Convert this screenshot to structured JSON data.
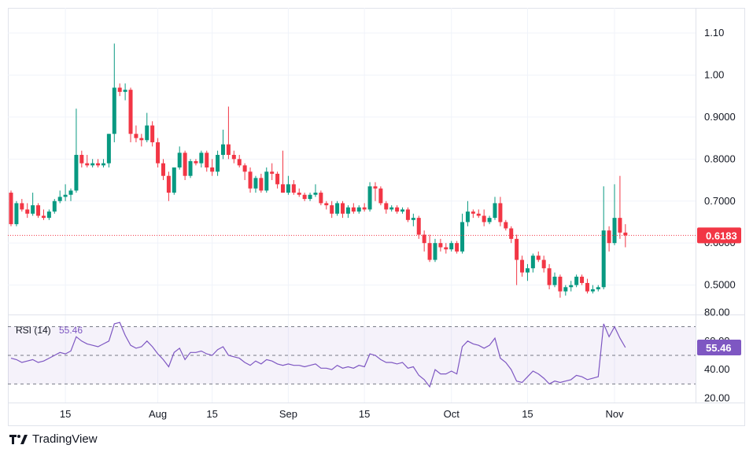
{
  "chart_data": {
    "type": "candlestick",
    "price_axis": {
      "ylim": [
        0.43,
        1.16
      ],
      "ticks": [
        {
          "value": 1.1,
          "label": "1.10"
        },
        {
          "value": 1.0,
          "label": "1.00"
        },
        {
          "value": 0.9,
          "label": "0.9000"
        },
        {
          "value": 0.8,
          "label": "0.8000"
        },
        {
          "value": 0.7,
          "label": "0.7000"
        },
        {
          "value": 0.6,
          "label": "0.6000"
        },
        {
          "value": 0.5,
          "label": "0.5000"
        }
      ]
    },
    "current_price": {
      "value": 0.6183,
      "label": "0.6183"
    },
    "x_axis": {
      "ticks": [
        {
          "index": 10,
          "label": "15"
        },
        {
          "index": 27,
          "label": "Aug"
        },
        {
          "index": 37,
          "label": "15"
        },
        {
          "index": 51,
          "label": "Sep"
        },
        {
          "index": 65,
          "label": "15"
        },
        {
          "index": 81,
          "label": "Oct"
        },
        {
          "index": 95,
          "label": "15"
        },
        {
          "index": 111,
          "label": "Nov"
        }
      ]
    },
    "candles": [
      [
        0.72,
        0.725,
        0.64,
        0.645
      ],
      [
        0.645,
        0.7,
        0.64,
        0.695
      ],
      [
        0.695,
        0.705,
        0.675,
        0.68
      ],
      [
        0.68,
        0.695,
        0.66,
        0.67
      ],
      [
        0.67,
        0.72,
        0.665,
        0.69
      ],
      [
        0.69,
        0.695,
        0.66,
        0.665
      ],
      [
        0.665,
        0.68,
        0.655,
        0.66
      ],
      [
        0.66,
        0.68,
        0.655,
        0.675
      ],
      [
        0.675,
        0.705,
        0.67,
        0.7
      ],
      [
        0.7,
        0.725,
        0.695,
        0.71
      ],
      [
        0.71,
        0.74,
        0.7,
        0.715
      ],
      [
        0.715,
        0.73,
        0.7,
        0.725
      ],
      [
        0.725,
        0.92,
        0.72,
        0.81
      ],
      [
        0.81,
        0.82,
        0.78,
        0.79
      ],
      [
        0.79,
        0.81,
        0.78,
        0.785
      ],
      [
        0.785,
        0.8,
        0.78,
        0.79
      ],
      [
        0.79,
        0.8,
        0.78,
        0.785
      ],
      [
        0.785,
        0.8,
        0.78,
        0.79
      ],
      [
        0.79,
        0.86,
        0.78,
        0.86
      ],
      [
        0.86,
        1.075,
        0.84,
        0.97
      ],
      [
        0.97,
        0.98,
        0.95,
        0.96
      ],
      [
        0.96,
        0.98,
        0.94,
        0.965
      ],
      [
        0.965,
        0.97,
        0.84,
        0.86
      ],
      [
        0.86,
        0.88,
        0.84,
        0.85
      ],
      [
        0.85,
        0.86,
        0.83,
        0.845
      ],
      [
        0.845,
        0.91,
        0.84,
        0.88
      ],
      [
        0.88,
        0.89,
        0.83,
        0.84
      ],
      [
        0.84,
        0.85,
        0.78,
        0.79
      ],
      [
        0.79,
        0.8,
        0.75,
        0.76
      ],
      [
        0.76,
        0.77,
        0.7,
        0.72
      ],
      [
        0.72,
        0.78,
        0.715,
        0.78
      ],
      [
        0.78,
        0.83,
        0.775,
        0.815
      ],
      [
        0.815,
        0.82,
        0.75,
        0.76
      ],
      [
        0.76,
        0.8,
        0.755,
        0.795
      ],
      [
        0.795,
        0.8,
        0.785,
        0.79
      ],
      [
        0.79,
        0.82,
        0.78,
        0.815
      ],
      [
        0.815,
        0.82,
        0.77,
        0.78
      ],
      [
        0.78,
        0.8,
        0.76,
        0.77
      ],
      [
        0.77,
        0.82,
        0.76,
        0.81
      ],
      [
        0.81,
        0.87,
        0.8,
        0.835
      ],
      [
        0.835,
        0.925,
        0.8,
        0.81
      ],
      [
        0.81,
        0.82,
        0.79,
        0.8
      ],
      [
        0.8,
        0.81,
        0.78,
        0.785
      ],
      [
        0.785,
        0.79,
        0.75,
        0.77
      ],
      [
        0.77,
        0.78,
        0.72,
        0.73
      ],
      [
        0.73,
        0.76,
        0.72,
        0.755
      ],
      [
        0.755,
        0.765,
        0.72,
        0.725
      ],
      [
        0.725,
        0.78,
        0.72,
        0.77
      ],
      [
        0.77,
        0.79,
        0.75,
        0.765
      ],
      [
        0.765,
        0.77,
        0.73,
        0.74
      ],
      [
        0.74,
        0.82,
        0.72,
        0.72
      ],
      [
        0.72,
        0.76,
        0.715,
        0.74
      ],
      [
        0.74,
        0.75,
        0.715,
        0.72
      ],
      [
        0.72,
        0.73,
        0.71,
        0.715
      ],
      [
        0.715,
        0.72,
        0.7,
        0.705
      ],
      [
        0.705,
        0.72,
        0.7,
        0.715
      ],
      [
        0.715,
        0.74,
        0.71,
        0.72
      ],
      [
        0.72,
        0.725,
        0.69,
        0.695
      ],
      [
        0.695,
        0.7,
        0.68,
        0.69
      ],
      [
        0.69,
        0.7,
        0.66,
        0.67
      ],
      [
        0.67,
        0.7,
        0.665,
        0.695
      ],
      [
        0.695,
        0.7,
        0.66,
        0.67
      ],
      [
        0.67,
        0.69,
        0.66,
        0.685
      ],
      [
        0.685,
        0.695,
        0.67,
        0.675
      ],
      [
        0.675,
        0.69,
        0.67,
        0.685
      ],
      [
        0.685,
        0.695,
        0.675,
        0.68
      ],
      [
        0.68,
        0.745,
        0.675,
        0.735
      ],
      [
        0.735,
        0.745,
        0.7,
        0.73
      ],
      [
        0.73,
        0.735,
        0.69,
        0.695
      ],
      [
        0.695,
        0.7,
        0.67,
        0.68
      ],
      [
        0.68,
        0.69,
        0.675,
        0.685
      ],
      [
        0.685,
        0.69,
        0.67,
        0.675
      ],
      [
        0.675,
        0.685,
        0.67,
        0.68
      ],
      [
        0.68,
        0.685,
        0.65,
        0.655
      ],
      [
        0.655,
        0.67,
        0.64,
        0.66
      ],
      [
        0.66,
        0.665,
        0.61,
        0.62
      ],
      [
        0.62,
        0.63,
        0.58,
        0.6
      ],
      [
        0.6,
        0.62,
        0.555,
        0.56
      ],
      [
        0.56,
        0.61,
        0.555,
        0.6
      ],
      [
        0.6,
        0.61,
        0.58,
        0.59
      ],
      [
        0.59,
        0.6,
        0.575,
        0.585
      ],
      [
        0.585,
        0.605,
        0.58,
        0.6
      ],
      [
        0.6,
        0.605,
        0.575,
        0.58
      ],
      [
        0.58,
        0.67,
        0.575,
        0.65
      ],
      [
        0.65,
        0.7,
        0.64,
        0.675
      ],
      [
        0.675,
        0.68,
        0.66,
        0.67
      ],
      [
        0.67,
        0.68,
        0.66,
        0.665
      ],
      [
        0.665,
        0.68,
        0.64,
        0.65
      ],
      [
        0.65,
        0.665,
        0.645,
        0.66
      ],
      [
        0.66,
        0.71,
        0.655,
        0.695
      ],
      [
        0.695,
        0.71,
        0.64,
        0.65
      ],
      [
        0.65,
        0.655,
        0.63,
        0.635
      ],
      [
        0.635,
        0.64,
        0.6,
        0.61
      ],
      [
        0.61,
        0.62,
        0.5,
        0.56
      ],
      [
        0.56,
        0.57,
        0.52,
        0.53
      ],
      [
        0.53,
        0.55,
        0.51,
        0.54
      ],
      [
        0.54,
        0.575,
        0.53,
        0.57
      ],
      [
        0.57,
        0.58,
        0.555,
        0.56
      ],
      [
        0.56,
        0.57,
        0.53,
        0.54
      ],
      [
        0.54,
        0.55,
        0.49,
        0.5
      ],
      [
        0.5,
        0.53,
        0.495,
        0.52
      ],
      [
        0.52,
        0.525,
        0.47,
        0.485
      ],
      [
        0.485,
        0.5,
        0.475,
        0.495
      ],
      [
        0.495,
        0.51,
        0.485,
        0.5
      ],
      [
        0.5,
        0.525,
        0.495,
        0.52
      ],
      [
        0.52,
        0.525,
        0.5,
        0.505
      ],
      [
        0.505,
        0.515,
        0.48,
        0.485
      ],
      [
        0.485,
        0.5,
        0.48,
        0.49
      ],
      [
        0.49,
        0.5,
        0.485,
        0.495
      ],
      [
        0.495,
        0.735,
        0.49,
        0.63
      ],
      [
        0.63,
        0.64,
        0.58,
        0.6
      ],
      [
        0.6,
        0.74,
        0.595,
        0.66
      ],
      [
        0.66,
        0.76,
        0.61,
        0.625
      ],
      [
        0.625,
        0.645,
        0.59,
        0.6183
      ]
    ],
    "rsi": {
      "label": "RSI (14)",
      "value_label": "55.46",
      "value": 55.46,
      "ylim": [
        17,
        78
      ],
      "bands": [
        30,
        50,
        70
      ],
      "ticks": [
        {
          "value": 80,
          "label": "80.00"
        },
        {
          "value": 60,
          "label": "60.00"
        },
        {
          "value": 40,
          "label": "40.00"
        },
        {
          "value": 20,
          "label": "20.00"
        }
      ],
      "values": [
        48,
        47,
        45,
        46,
        47,
        45,
        46,
        48,
        50,
        52,
        51,
        53,
        63,
        60,
        58,
        57,
        56,
        58,
        60,
        72,
        73,
        64,
        57,
        55,
        56,
        60,
        56,
        51,
        47,
        42,
        52,
        55,
        47,
        52,
        52,
        53,
        51,
        50,
        54,
        56,
        50,
        49,
        48,
        45,
        43,
        46,
        44,
        47,
        46,
        44,
        43,
        44,
        43,
        43,
        42,
        43,
        44,
        41,
        41,
        40,
        43,
        41,
        42,
        41,
        43,
        42,
        51,
        50,
        47,
        45,
        45,
        44,
        45,
        41,
        42,
        36,
        33,
        28,
        40,
        37,
        37,
        39,
        37,
        56,
        60,
        58,
        57,
        55,
        57,
        62,
        48,
        45,
        40,
        32,
        31,
        35,
        39,
        37,
        34,
        30,
        32,
        31,
        32,
        33,
        36,
        35,
        33,
        34,
        35,
        72,
        63,
        70,
        62,
        55.46
      ]
    }
  }
}
